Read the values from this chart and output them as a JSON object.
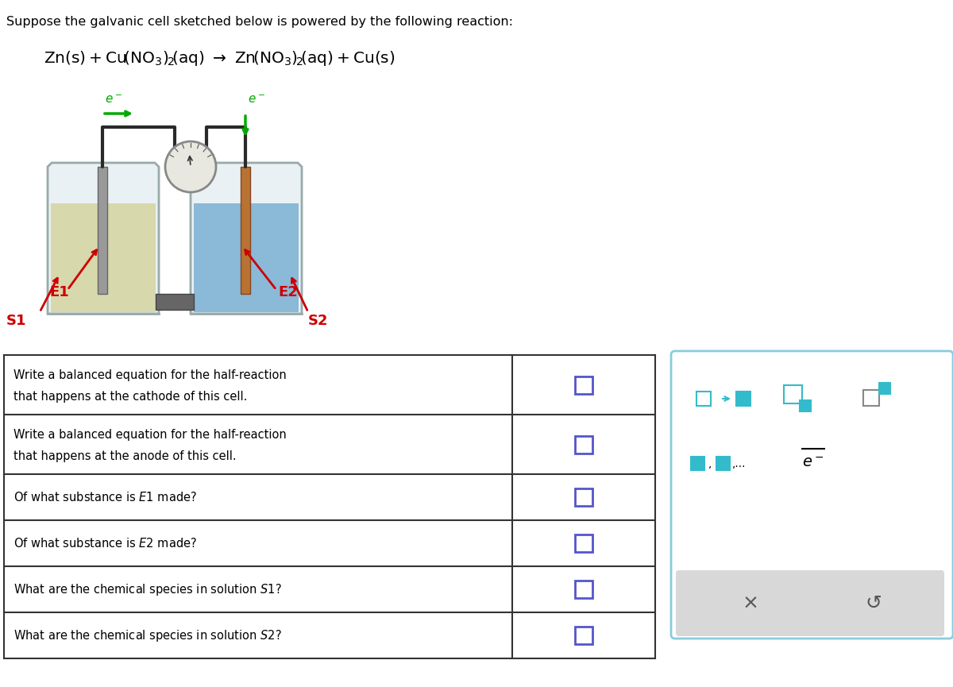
{
  "title_text": "Suppose the galvanic cell sketched below is powered by the following reaction:",
  "reaction_line1": "Zn(s)+Cu(NO",
  "bg_color": "#ffffff",
  "table_rows": [
    {
      "question": "Write a balanced equation for the half-reaction\nthat happens at the cathode of this cell.",
      "multiline": true
    },
    {
      "question": "Write a balanced equation for the half-reaction\nthat happens at the anode of this cell.",
      "multiline": true
    },
    {
      "question": "Of what substance is E1 made?",
      "multiline": false,
      "italic_parts": [
        "E1"
      ]
    },
    {
      "question": "Of what substance is E2 made?",
      "multiline": false,
      "italic_parts": [
        "E2"
      ]
    },
    {
      "question": "What are the chemical species in solution S1?",
      "multiline": false,
      "italic_parts": [
        "S1"
      ]
    },
    {
      "question": "What are the chemical species in solution S2?",
      "multiline": false,
      "italic_parts": [
        "S2"
      ]
    }
  ],
  "cell_color_left": "#d4d4a0",
  "cell_color_right": "#7ab0d4",
  "electrode_color": "#888888",
  "beaker_color": "#e8e8e8",
  "wire_color": "#2a2a2a",
  "arrow_color_green": "#00aa00",
  "arrow_color_red": "#cc0000",
  "label_e1_color": "#cc0000",
  "label_e2_color": "#cc0000",
  "label_s1_color": "#cc0000",
  "label_s2_color": "#cc0000",
  "table_border_color": "#333333",
  "answer_box_color": "#5555cc",
  "toolbar_border_color": "#88ccdd",
  "toolbar_cyan_color": "#33bbcc",
  "toolbar_bg": "#f5f5f5",
  "toolbar_gray_bg": "#d8d8d8"
}
